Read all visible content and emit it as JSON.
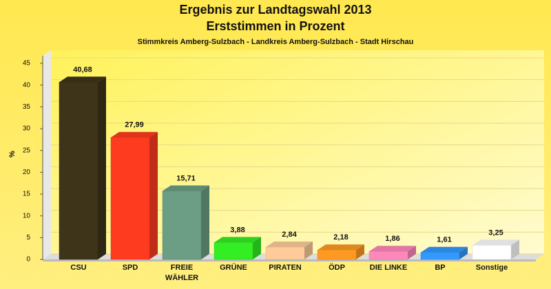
{
  "chart_data": {
    "type": "bar",
    "title": "Ergebnis zur Landtagswahl 2013",
    "subtitle": "Erststimmen in Prozent",
    "caption": "Stimmkreis Amberg-Sulzbach - Landkreis Amberg-Sulzbach - Stadt Hirschau",
    "y_label": "%",
    "categories": [
      "CSU",
      "SPD",
      "FREIE WÄHLER",
      "GRÜNE",
      "PIRATEN",
      "ÖDP",
      "DIE LINKE",
      "BP",
      "Sonstige"
    ],
    "values": [
      40.68,
      27.99,
      15.71,
      3.88,
      2.84,
      2.18,
      1.86,
      1.61,
      3.25
    ],
    "value_labels": [
      "40,68",
      "27,99",
      "15,71",
      "3,88",
      "2,84",
      "2,18",
      "1,86",
      "1,61",
      "3,25"
    ],
    "colors": [
      "#3d3419",
      "#ff3b1f",
      "#6b9e84",
      "#33ee22",
      "#ffcc99",
      "#ff9922",
      "#ff88bb",
      "#3399ff",
      "#ffffff"
    ],
    "ylim": [
      0,
      45
    ],
    "yticks": [
      0,
      5,
      10,
      15,
      20,
      25,
      30,
      35,
      40,
      45
    ],
    "grid": true
  }
}
